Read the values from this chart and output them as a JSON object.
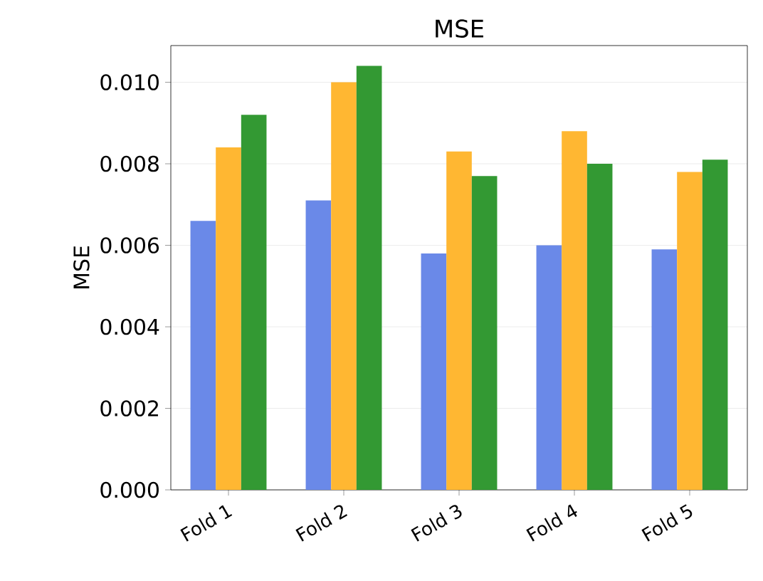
{
  "chart_data": {
    "type": "bar",
    "title": "MSE",
    "ylabel": "MSE",
    "categories": [
      "Fold 1",
      "Fold 2",
      "Fold 3",
      "Fold 4",
      "Fold 5"
    ],
    "series": [
      {
        "color": "#6a89e8",
        "values": [
          0.0066,
          0.0071,
          0.0058,
          0.006,
          0.0059
        ]
      },
      {
        "color": "#ffb732",
        "values": [
          0.0084,
          0.01,
          0.0083,
          0.0088,
          0.0078
        ]
      },
      {
        "color": "#339933",
        "values": [
          0.0092,
          0.0104,
          0.0077,
          0.008,
          0.0081
        ]
      }
    ],
    "ylim": [
      0,
      0.0109
    ],
    "yticks": [
      {
        "value": 0,
        "label": "0.000"
      },
      {
        "value": 0.002,
        "label": "0.002"
      },
      {
        "value": 0.004,
        "label": "0.004"
      },
      {
        "value": 0.006,
        "label": "0.006"
      },
      {
        "value": 0.008,
        "label": "0.008"
      },
      {
        "value": 0.01,
        "label": "0.010"
      }
    ],
    "grid": "y"
  }
}
